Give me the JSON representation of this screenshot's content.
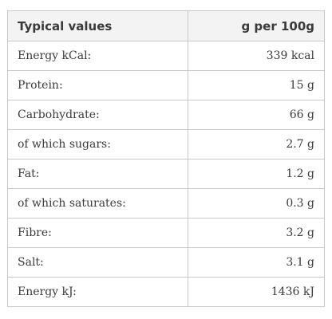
{
  "table": {
    "headers": {
      "label": "Typical values",
      "value": "g per 100g"
    },
    "rows": [
      {
        "label": "Energy kCal:",
        "value": "339 kcal"
      },
      {
        "label": "Protein:",
        "value": "15 g"
      },
      {
        "label": "Carbohydrate:",
        "value": "66 g"
      },
      {
        "label": "of which sugars:",
        "value": "2.7 g"
      },
      {
        "label": "Fat:",
        "value": "1.2 g"
      },
      {
        "label": "of which saturates:",
        "value": "0.3 g"
      },
      {
        "label": "Fibre:",
        "value": "3.2 g"
      },
      {
        "label": "Salt:",
        "value": "3.1 g"
      },
      {
        "label": "Energy kJ:",
        "value": "1436 kJ"
      }
    ]
  }
}
